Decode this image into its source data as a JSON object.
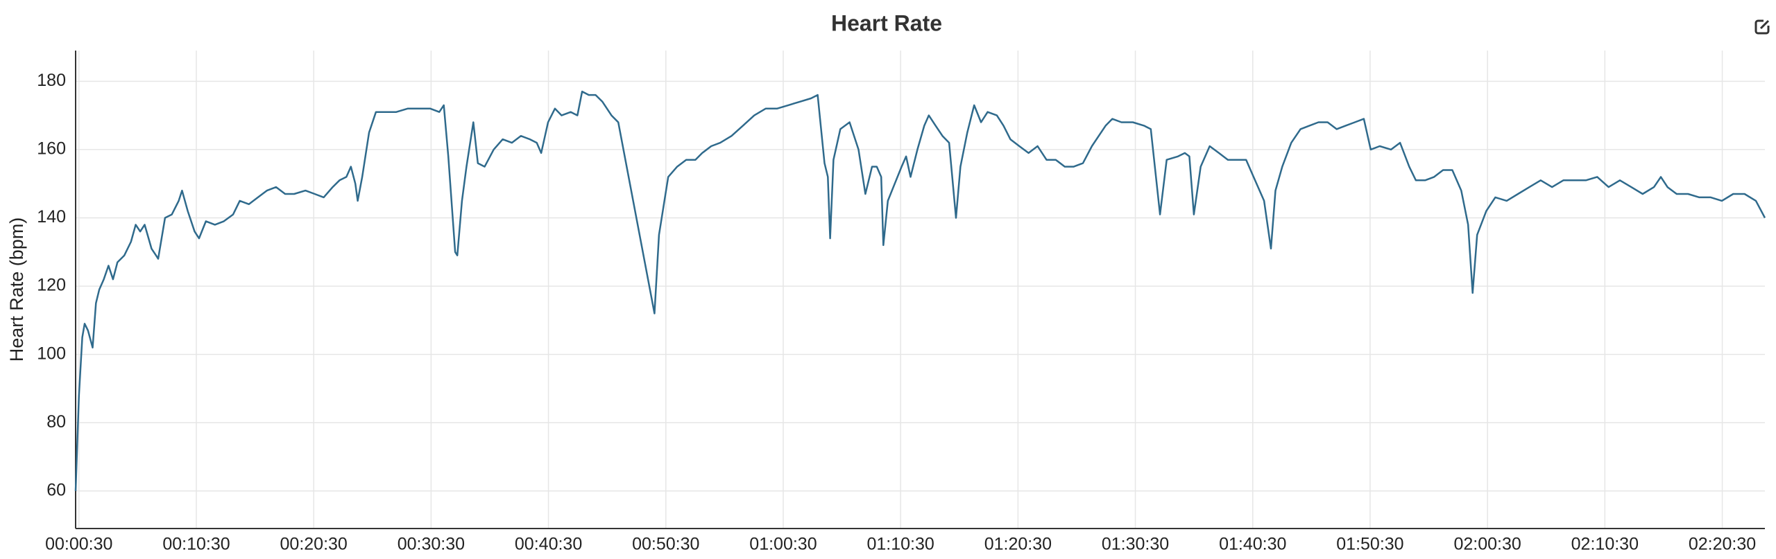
{
  "chart_data": {
    "type": "line",
    "title": "Heart Rate",
    "y_label": "Heart Rate (bpm)",
    "x": [
      13,
      30,
      47,
      59,
      76,
      100,
      117,
      134,
      157,
      181,
      204,
      227,
      262,
      296,
      320,
      343,
      366,
      401,
      424,
      435,
      470,
      505,
      540,
      557,
      586,
      621,
      644,
      679,
      725,
      771,
      818,
      852,
      899,
      945,
      991,
      1038,
      1084,
      1130,
      1188,
      1235,
      1281,
      1327,
      1362,
      1397,
      1420,
      1443,
      1455,
      1478,
      1513,
      1548,
      1594,
      1652,
      1710,
      1768,
      1826,
      1872,
      1895,
      1918,
      1953,
      1964,
      1988,
      2011,
      2046,
      2069,
      2104,
      2150,
      2196,
      2243,
      2289,
      2335,
      2370,
      2393,
      2428,
      2463,
      2497,
      2544,
      2578,
      2602,
      2636,
      2671,
      2706,
      2752,
      2787,
      2972,
      2995,
      3042,
      3088,
      3134,
      3181,
      3216,
      3262,
      3308,
      3366,
      3424,
      3482,
      3540,
      3598,
      3656,
      3714,
      3772,
      3806,
      3841,
      3858,
      3870,
      3887,
      3922,
      3969,
      4015,
      4050,
      4084,
      4108,
      4131,
      4142,
      4165,
      4200,
      4235,
      4258,
      4281,
      4316,
      4351,
      4374,
      4409,
      4444,
      4478,
      4513,
      4536,
      4571,
      4606,
      4641,
      4675,
      4722,
      4756,
      4791,
      4837,
      4884,
      4930,
      4976,
      5023,
      5069,
      5115,
      5162,
      5208,
      5243,
      5278,
      5312,
      5359,
      5417,
      5474,
      5509,
      5556,
      5590,
      5648,
      5683,
      5706,
      5729,
      5764,
      5810,
      5857,
      5903,
      5949,
      5996,
      6042,
      6088,
      6123,
      6146,
      6181,
      6227,
      6274,
      6320,
      6366,
      6413,
      6459,
      6505,
      6552,
      6598,
      6633,
      6679,
      6737,
      6783,
      6830,
      6864,
      6911,
      6957,
      7003,
      7050,
      7096,
      7131,
      7154,
      7177,
      7224,
      7270,
      7328,
      7386,
      7444,
      7502,
      7560,
      7618,
      7675,
      7733,
      7791,
      7849,
      7907,
      7965,
      8023,
      8081,
      8116,
      8150,
      8197,
      8255,
      8313,
      8371,
      8428,
      8486,
      8544,
      8602,
      8648
    ],
    "series": [
      {
        "name": "Heart Rate",
        "color": "#2f6a8c",
        "values": [
          60,
          88,
          105,
          109,
          107,
          102,
          115,
          119,
          122,
          126,
          122,
          127,
          129,
          133,
          138,
          136,
          138,
          131,
          129,
          128,
          140,
          141,
          145,
          148,
          142,
          136,
          134,
          139,
          138,
          139,
          141,
          145,
          144,
          146,
          148,
          149,
          147,
          147,
          148,
          147,
          146,
          149,
          151,
          152,
          155,
          150,
          145,
          152,
          165,
          171,
          171,
          171,
          172,
          172,
          172,
          171,
          173,
          158,
          130,
          129,
          145,
          155,
          168,
          156,
          155,
          160,
          163,
          162,
          164,
          163,
          162,
          159,
          168,
          172,
          170,
          171,
          170,
          177,
          176,
          176,
          174,
          170,
          168,
          112,
          135,
          152,
          155,
          157,
          157,
          159,
          161,
          162,
          164,
          167,
          170,
          172,
          172,
          173,
          174,
          175,
          176,
          156,
          152,
          134,
          157,
          166,
          168,
          160,
          147,
          155,
          155,
          152,
          132,
          145,
          150,
          155,
          158,
          152,
          160,
          167,
          170,
          167,
          164,
          162,
          140,
          155,
          165,
          173,
          168,
          171,
          170,
          167,
          163,
          161,
          159,
          161,
          157,
          157,
          155,
          155,
          156,
          161,
          164,
          167,
          169,
          168,
          168,
          167,
          166,
          141,
          157,
          158,
          159,
          158,
          141,
          155,
          161,
          159,
          157,
          157,
          157,
          151,
          145,
          131,
          148,
          155,
          162,
          166,
          167,
          168,
          168,
          166,
          167,
          168,
          169,
          160,
          161,
          160,
          162,
          155,
          151,
          151,
          152,
          154,
          154,
          148,
          138,
          118,
          135,
          142,
          146,
          145,
          147,
          149,
          151,
          149,
          151,
          151,
          151,
          152,
          149,
          151,
          149,
          147,
          149,
          152,
          149,
          147,
          147,
          146,
          146,
          145,
          147,
          147,
          145,
          140
        ]
      }
    ],
    "xlim": [
      13,
      8648
    ],
    "xticks": [
      {
        "value": 30,
        "label": "00:00:30"
      },
      {
        "value": 630,
        "label": "00:10:30"
      },
      {
        "value": 1230,
        "label": "00:20:30"
      },
      {
        "value": 1830,
        "label": "00:30:30"
      },
      {
        "value": 2430,
        "label": "00:40:30"
      },
      {
        "value": 3030,
        "label": "00:50:30"
      },
      {
        "value": 3630,
        "label": "01:00:30"
      },
      {
        "value": 4230,
        "label": "01:10:30"
      },
      {
        "value": 4830,
        "label": "01:20:30"
      },
      {
        "value": 5430,
        "label": "01:30:30"
      },
      {
        "value": 6030,
        "label": "01:40:30"
      },
      {
        "value": 6630,
        "label": "01:50:30"
      },
      {
        "value": 7230,
        "label": "02:00:30"
      },
      {
        "value": 7830,
        "label": "02:10:30"
      },
      {
        "value": 8430,
        "label": "02:20:30"
      }
    ],
    "ylim": [
      49,
      189
    ],
    "yticks": [
      60,
      80,
      100,
      120,
      140,
      160,
      180
    ],
    "grid": true
  }
}
